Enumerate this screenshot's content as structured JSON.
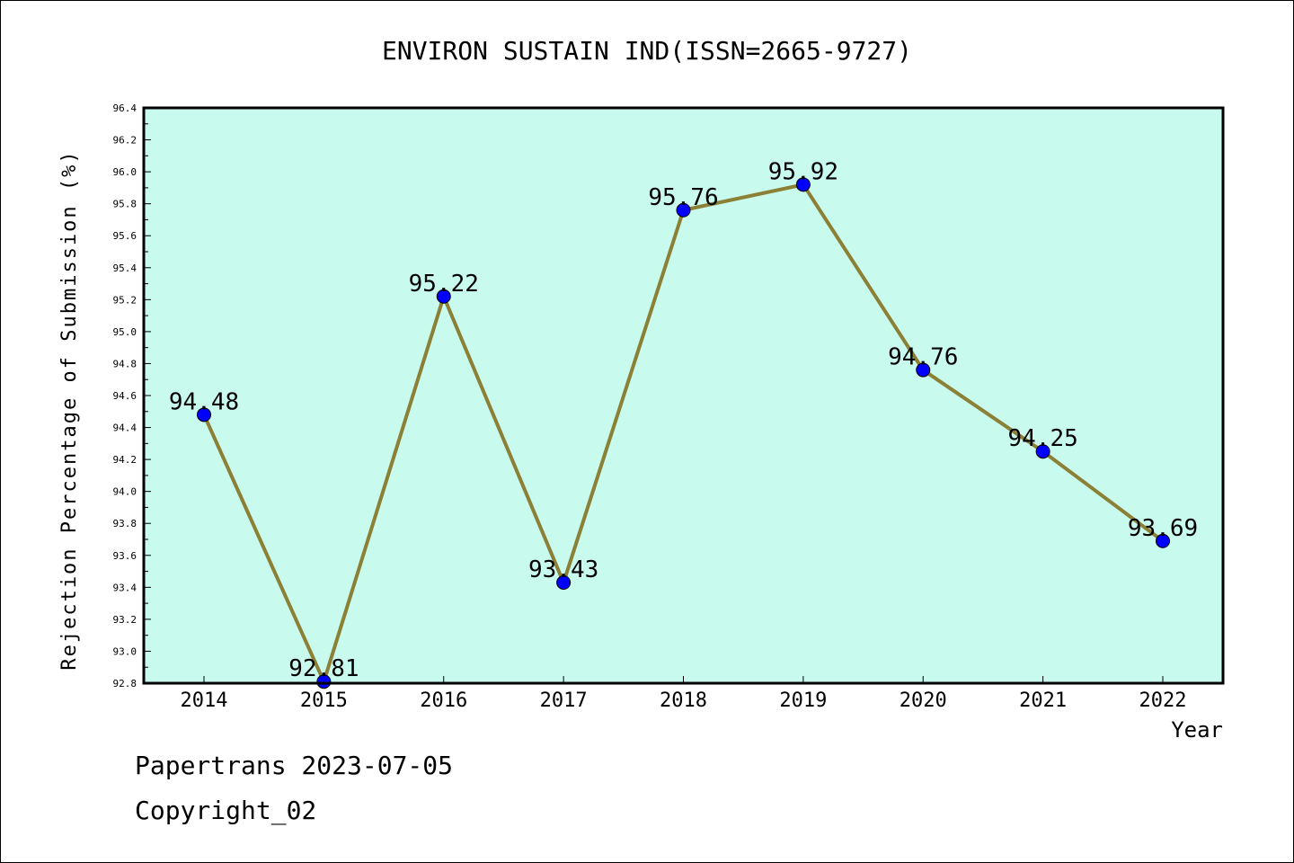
{
  "chart_data": {
    "type": "line",
    "title": "ENVIRON SUSTAIN IND(ISSN=2665-9727)",
    "xlabel": "Year",
    "ylabel": "Rejection Percentage of Submission (%)",
    "categories": [
      "2014",
      "2015",
      "2016",
      "2017",
      "2018",
      "2019",
      "2020",
      "2021",
      "2022"
    ],
    "values": [
      94.48,
      92.81,
      95.22,
      93.43,
      95.76,
      95.92,
      94.76,
      94.25,
      93.69
    ],
    "data_labels": [
      "94.48",
      "92.81",
      "95.22",
      "93.43",
      "95.76",
      "95.92",
      "94.76",
      "94.25",
      "93.69"
    ],
    "ylim": [
      92.8,
      96.4
    ],
    "yticks": [
      "92.8",
      "93.0",
      "93.2",
      "93.4",
      "93.6",
      "93.8",
      "94.0",
      "94.2",
      "94.4",
      "94.6",
      "94.8",
      "95.0",
      "95.2",
      "95.4",
      "95.6",
      "95.8",
      "96.0",
      "96.2",
      "96.4"
    ],
    "grid": false,
    "colors": {
      "plot_background": "#c8faee",
      "line": "#8b8036",
      "marker": "#0000ff"
    }
  },
  "footer": {
    "line1": "Papertrans 2023-07-05",
    "line2": "Copyright_02"
  }
}
